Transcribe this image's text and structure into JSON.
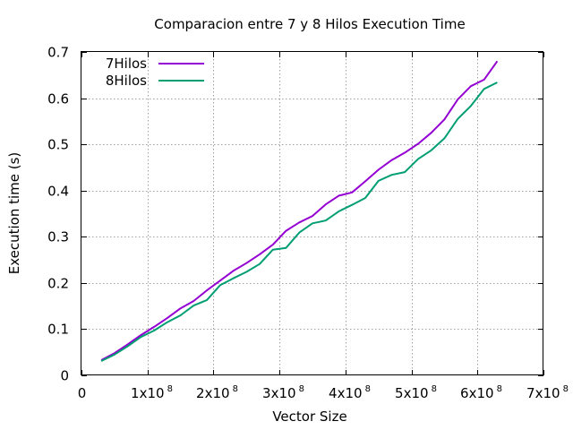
{
  "chart_data": {
    "type": "line",
    "title": "Comparacion entre 7 y 8 Hilos Execution Time",
    "xlabel": "Vector Size",
    "ylabel": "Execution time (s)",
    "xlim": [
      0,
      700000000
    ],
    "ylim": [
      0,
      0.7
    ],
    "grid": true,
    "legend_position": "top-left",
    "x_ticks": [
      {
        "value": 0,
        "base": "0",
        "exp": ""
      },
      {
        "value": 100000000,
        "base": "1x10",
        "exp": "8"
      },
      {
        "value": 200000000,
        "base": "2x10",
        "exp": "8"
      },
      {
        "value": 300000000,
        "base": "3x10",
        "exp": "8"
      },
      {
        "value": 400000000,
        "base": "4x10",
        "exp": "8"
      },
      {
        "value": 500000000,
        "base": "5x10",
        "exp": "8"
      },
      {
        "value": 600000000,
        "base": "6x10",
        "exp": "8"
      },
      {
        "value": 700000000,
        "base": "7x10",
        "exp": "8"
      }
    ],
    "y_ticks": [
      {
        "value": 0,
        "label": "0"
      },
      {
        "value": 0.1,
        "label": "0.1"
      },
      {
        "value": 0.2,
        "label": "0.2"
      },
      {
        "value": 0.3,
        "label": "0.3"
      },
      {
        "value": 0.4,
        "label": "0.4"
      },
      {
        "value": 0.5,
        "label": "0.5"
      },
      {
        "value": 0.6,
        "label": "0.6"
      },
      {
        "value": 0.7,
        "label": "0.7"
      }
    ],
    "x": [
      30000000,
      50000000,
      70000000,
      90000000,
      110000000,
      130000000,
      150000000,
      170000000,
      190000000,
      210000000,
      230000000,
      250000000,
      270000000,
      290000000,
      310000000,
      330000000,
      350000000,
      370000000,
      390000000,
      410000000,
      430000000,
      450000000,
      470000000,
      490000000,
      510000000,
      530000000,
      550000000,
      570000000,
      590000000,
      610000000,
      630000000
    ],
    "series": [
      {
        "name": "7Hilos",
        "color": "#9400d3",
        "values": [
          0.033,
          0.048,
          0.067,
          0.087,
          0.105,
          0.124,
          0.145,
          0.161,
          0.184,
          0.205,
          0.226,
          0.243,
          0.262,
          0.283,
          0.313,
          0.331,
          0.345,
          0.37,
          0.389,
          0.396,
          0.42,
          0.445,
          0.466,
          0.482,
          0.501,
          0.525,
          0.554,
          0.597,
          0.626,
          0.64,
          0.68
        ]
      },
      {
        "name": "8Hilos",
        "color": "#009e73",
        "values": [
          0.031,
          0.045,
          0.063,
          0.083,
          0.097,
          0.115,
          0.13,
          0.151,
          0.163,
          0.195,
          0.21,
          0.224,
          0.241,
          0.272,
          0.276,
          0.309,
          0.329,
          0.335,
          0.355,
          0.369,
          0.384,
          0.421,
          0.434,
          0.44,
          0.468,
          0.487,
          0.513,
          0.555,
          0.583,
          0.62,
          0.634
        ]
      }
    ]
  }
}
